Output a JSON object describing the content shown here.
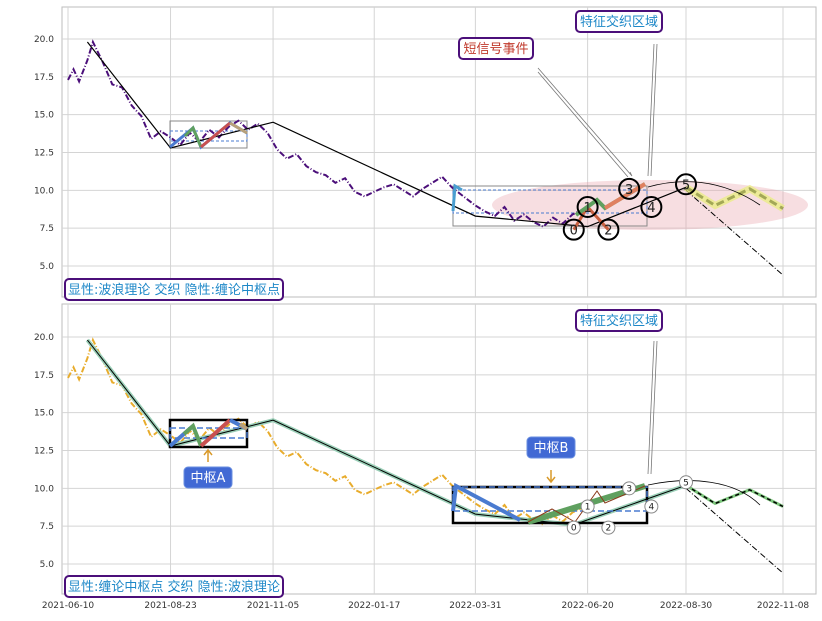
{
  "x_ticks": [
    "2021-06-10",
    "2021-08-23",
    "2021-11-05",
    "2022-01-17",
    "2022-03-31",
    "2022-06-20",
    "2022-08-30",
    "2022-11-08"
  ],
  "y_ticks": [
    "5.0",
    "7.5",
    "10.0",
    "12.5",
    "15.0",
    "17.5",
    "20.0"
  ],
  "colors": {
    "price_top": "#4b0f7a",
    "price_bottom": "#e8ac2c",
    "wave_blue": "#4a7bd0",
    "wave_green": "#5fa05f",
    "wave_red": "#c85050",
    "wave_tan": "#b8a17a",
    "label_border": "#4b0f7a",
    "label_text_blue": "#1e88c8",
    "label_text_red": "#c0392b",
    "zone_fill": "#e8a0a8",
    "badge_fill": "#4169d4"
  },
  "chart_data": [
    {
      "type": "line",
      "panel": "top",
      "title": "",
      "ylim": [
        3,
        22
      ],
      "x_axis": "date",
      "grid": true,
      "series": [
        {
          "values_desc": "price",
          "points": [
            [
              "2021-06-10",
              17.3
            ],
            [
              "2021-06-14",
              18.0
            ],
            [
              "2021-06-18",
              17.2
            ],
            [
              "2021-06-24",
              18.6
            ],
            [
              "2021-06-28",
              19.8
            ],
            [
              "2021-07-05",
              18.5
            ],
            [
              "2021-07-12",
              17.0
            ],
            [
              "2021-07-19",
              16.8
            ],
            [
              "2021-07-26",
              15.6
            ],
            [
              "2021-08-02",
              14.9
            ],
            [
              "2021-08-09",
              13.4
            ],
            [
              "2021-08-16",
              13.9
            ],
            [
              "2021-08-23",
              13.5
            ],
            [
              "2021-08-30",
              13.0
            ],
            [
              "2021-09-06",
              13.8
            ],
            [
              "2021-09-13",
              13.2
            ],
            [
              "2021-09-20",
              14.0
            ],
            [
              "2021-09-27",
              13.5
            ],
            [
              "2021-10-04",
              14.2
            ],
            [
              "2021-10-11",
              14.6
            ],
            [
              "2021-10-18",
              14.0
            ],
            [
              "2021-10-25",
              14.4
            ],
            [
              "2021-11-01",
              13.8
            ],
            [
              "2021-11-08",
              12.7
            ],
            [
              "2021-11-15",
              12.1
            ],
            [
              "2021-11-22",
              12.4
            ],
            [
              "2021-11-29",
              11.6
            ],
            [
              "2021-12-06",
              11.2
            ],
            [
              "2021-12-13",
              11.0
            ],
            [
              "2021-12-20",
              10.5
            ],
            [
              "2021-12-27",
              10.8
            ],
            [
              "2022-01-03",
              9.9
            ],
            [
              "2022-01-10",
              9.6
            ],
            [
              "2022-01-17",
              9.9
            ],
            [
              "2022-01-24",
              10.2
            ],
            [
              "2022-01-31",
              10.4
            ],
            [
              "2022-02-07",
              10.0
            ],
            [
              "2022-02-14",
              9.6
            ],
            [
              "2022-02-21",
              10.1
            ],
            [
              "2022-02-28",
              10.5
            ],
            [
              "2022-03-07",
              10.9
            ],
            [
              "2022-03-14",
              10.2
            ],
            [
              "2022-03-21",
              9.7
            ],
            [
              "2022-03-31",
              9.0
            ],
            [
              "2022-04-07",
              8.6
            ],
            [
              "2022-04-14",
              8.3
            ],
            [
              "2022-04-21",
              8.9
            ],
            [
              "2022-04-28",
              8.0
            ],
            [
              "2022-05-05",
              8.4
            ],
            [
              "2022-05-12",
              7.9
            ],
            [
              "2022-05-19",
              7.6
            ],
            [
              "2022-05-26",
              8.2
            ],
            [
              "2022-06-02",
              7.8
            ],
            [
              "2022-06-09",
              8.4
            ],
            [
              "2022-06-16",
              8.7
            ]
          ]
        },
        {
          "values_desc": "trend",
          "points": [
            [
              "2021-06-24",
              19.8
            ],
            [
              "2021-08-23",
              12.8
            ],
            [
              "2021-11-05",
              14.5
            ],
            [
              "2022-03-31",
              8.3
            ],
            [
              "2022-06-20",
              7.6
            ],
            [
              "2022-08-30",
              10.2
            ]
          ]
        },
        {
          "values_desc": "forecast",
          "points": [
            [
              "2022-08-30",
              10.2
            ],
            [
              "2022-09-20",
              9.0
            ],
            [
              "2022-10-15",
              10.1
            ],
            [
              "2022-11-08",
              8.8
            ]
          ]
        },
        {
          "values_desc": "trend_extension",
          "points": [
            [
              "2022-08-30",
              10.0
            ],
            [
              "2022-11-08",
              4.4
            ]
          ]
        }
      ],
      "wave_points": [
        {
          "label": "0",
          "x": "2022-06-10",
          "y": 7.4
        },
        {
          "label": "1",
          "x": "2022-06-20",
          "y": 8.9
        },
        {
          "label": "2",
          "x": "2022-07-05",
          "y": 7.4
        },
        {
          "label": "3",
          "x": "2022-07-20",
          "y": 10.1
        },
        {
          "label": "4",
          "x": "2022-08-05",
          "y": 8.9
        },
        {
          "label": "5",
          "x": "2022-08-30",
          "y": 10.4
        }
      ],
      "annotations": [
        {
          "key": "short_signal",
          "text": "短信号事件"
        },
        {
          "key": "feature_zone",
          "text": "特征交织区域"
        }
      ],
      "legend_text": "显性:波浪理论 交织 隐性:缠论中枢点"
    },
    {
      "type": "line",
      "panel": "bottom",
      "title": "",
      "ylim": [
        3,
        22
      ],
      "x_axis": "date",
      "grid": true,
      "series": [
        {
          "values_desc": "price",
          "points": [
            [
              "2021-06-10",
              17.3
            ],
            [
              "2021-06-14",
              18.0
            ],
            [
              "2021-06-18",
              17.2
            ],
            [
              "2021-06-24",
              18.6
            ],
            [
              "2021-06-28",
              19.8
            ],
            [
              "2021-07-05",
              18.5
            ],
            [
              "2021-07-12",
              17.0
            ],
            [
              "2021-07-19",
              16.8
            ],
            [
              "2021-07-26",
              15.6
            ],
            [
              "2021-08-02",
              14.9
            ],
            [
              "2021-08-09",
              13.4
            ],
            [
              "2021-08-16",
              13.9
            ],
            [
              "2021-08-23",
              13.5
            ],
            [
              "2021-08-30",
              13.0
            ],
            [
              "2021-09-06",
              13.8
            ],
            [
              "2021-09-13",
              13.2
            ],
            [
              "2021-09-20",
              14.0
            ],
            [
              "2021-09-27",
              13.5
            ],
            [
              "2021-10-04",
              14.2
            ],
            [
              "2021-10-11",
              14.6
            ],
            [
              "2021-10-18",
              14.0
            ],
            [
              "2021-10-25",
              14.4
            ],
            [
              "2021-11-01",
              13.8
            ],
            [
              "2021-11-08",
              12.7
            ],
            [
              "2021-11-15",
              12.1
            ],
            [
              "2021-11-22",
              12.4
            ],
            [
              "2021-11-29",
              11.6
            ],
            [
              "2021-12-06",
              11.2
            ],
            [
              "2021-12-13",
              11.0
            ],
            [
              "2021-12-20",
              10.5
            ],
            [
              "2021-12-27",
              10.8
            ],
            [
              "2022-01-03",
              9.9
            ],
            [
              "2022-01-10",
              9.6
            ],
            [
              "2022-01-17",
              9.9
            ],
            [
              "2022-01-24",
              10.2
            ],
            [
              "2022-01-31",
              10.4
            ],
            [
              "2022-02-07",
              10.0
            ],
            [
              "2022-02-14",
              9.6
            ],
            [
              "2022-02-21",
              10.1
            ],
            [
              "2022-02-28",
              10.5
            ],
            [
              "2022-03-07",
              10.9
            ],
            [
              "2022-03-14",
              10.2
            ],
            [
              "2022-03-21",
              9.7
            ],
            [
              "2022-03-31",
              9.0
            ],
            [
              "2022-04-07",
              8.6
            ],
            [
              "2022-04-14",
              8.3
            ],
            [
              "2022-04-21",
              8.9
            ],
            [
              "2022-04-28",
              8.0
            ],
            [
              "2022-05-05",
              8.4
            ],
            [
              "2022-05-12",
              7.9
            ],
            [
              "2022-05-19",
              7.6
            ],
            [
              "2022-05-26",
              8.2
            ],
            [
              "2022-06-02",
              7.8
            ],
            [
              "2022-06-09",
              8.4
            ],
            [
              "2022-06-16",
              8.7
            ]
          ]
        },
        {
          "values_desc": "trend",
          "points": [
            [
              "2021-06-24",
              19.8
            ],
            [
              "2021-08-23",
              12.8
            ],
            [
              "2021-11-05",
              14.5
            ],
            [
              "2022-03-31",
              8.3
            ],
            [
              "2022-06-10",
              7.6
            ],
            [
              "2022-08-30",
              10.2
            ]
          ]
        },
        {
          "values_desc": "forecast",
          "points": [
            [
              "2022-08-30",
              10.2
            ],
            [
              "2022-09-20",
              9.0
            ],
            [
              "2022-10-15",
              9.9
            ],
            [
              "2022-11-08",
              8.8
            ]
          ]
        },
        {
          "values_desc": "trend_extension",
          "points": [
            [
              "2022-08-30",
              10.0
            ],
            [
              "2022-11-08",
              4.4
            ]
          ]
        }
      ],
      "wave_points": [
        {
          "label": "0",
          "x": "2022-06-10",
          "y": 7.4
        },
        {
          "label": "1",
          "x": "2022-06-20",
          "y": 8.8
        },
        {
          "label": "2",
          "x": "2022-07-05",
          "y": 7.4
        },
        {
          "label": "3",
          "x": "2022-07-20",
          "y": 10.0
        },
        {
          "label": "4",
          "x": "2022-08-05",
          "y": 8.8
        },
        {
          "label": "5",
          "x": "2022-08-30",
          "y": 10.4
        }
      ],
      "annotations": [
        {
          "key": "feature_zone",
          "text": "特征交织区域"
        },
        {
          "key": "pivot_a",
          "text": "中枢A"
        },
        {
          "key": "pivot_b",
          "text": "中枢B"
        }
      ],
      "legend_text": "显性:缠论中枢点 交织 隐性:波浪理论"
    }
  ],
  "labels": {
    "top_legend": "显性:波浪理论 交织 隐性:缠论中枢点",
    "top_short_signal": "短信号事件",
    "top_feature_zone": "特征交织区域",
    "bottom_legend": "显性:缠论中枢点 交织 隐性:波浪理论",
    "bottom_feature_zone": "特征交织区域",
    "pivot_a": "中枢A",
    "pivot_b": "中枢B"
  }
}
